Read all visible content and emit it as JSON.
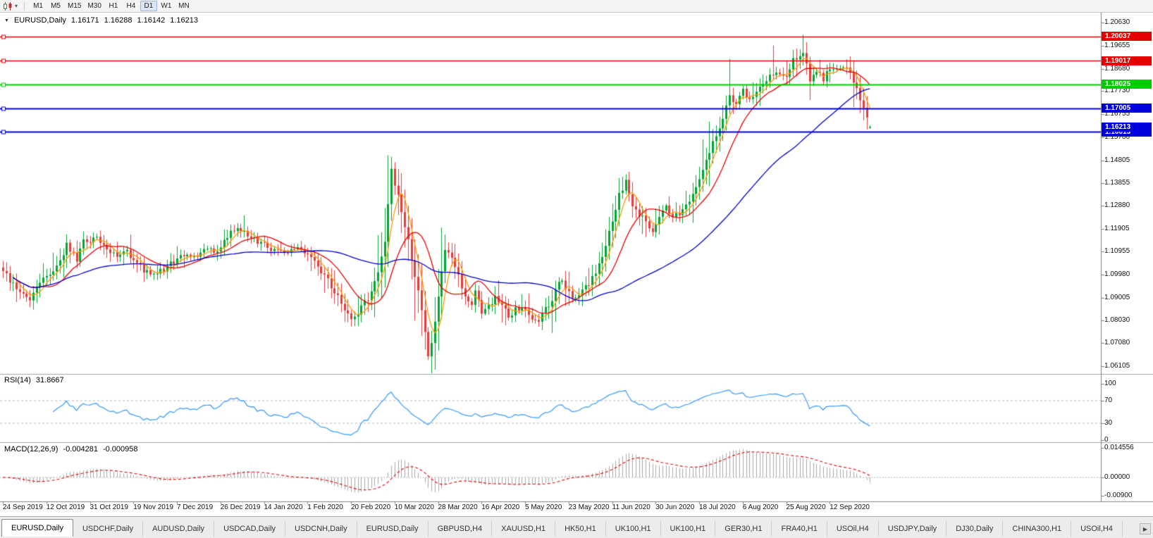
{
  "toolbar": {
    "timeframes": [
      "M1",
      "M5",
      "M15",
      "M30",
      "H1",
      "H4",
      "D1",
      "W1",
      "MN"
    ],
    "active_timeframe": "D1"
  },
  "chart": {
    "title": {
      "symbol_period": "EURUSD,Daily",
      "open": "1.16171",
      "high": "1.16288",
      "low": "1.16142",
      "close": "1.16213"
    },
    "price_axis": {
      "top_price": 1.2063,
      "bottom_price": 1.06105,
      "ticks": [
        "1.20630",
        "1.19655",
        "1.18680",
        "1.17730",
        "1.16755",
        "1.15780",
        "1.14805",
        "1.13855",
        "1.12880",
        "1.11905",
        "1.10955",
        "1.09980",
        "1.09005",
        "1.08030",
        "1.07080",
        "1.06105"
      ]
    },
    "levels": [
      {
        "label": "1.20037",
        "value": 1.20037,
        "color": "#e60000",
        "thickness": 1.6
      },
      {
        "label": "1.19017",
        "value": 1.19017,
        "color": "#e60000",
        "thickness": 1.6
      },
      {
        "label": "1.18025",
        "value": 1.18025,
        "color": "#00cc00",
        "thickness": 2.2
      },
      {
        "label": "1.17005",
        "value": 1.17005,
        "color": "#0000dd",
        "thickness": 2.2
      },
      {
        "label": "1.16013",
        "value": 1.16013,
        "color": "#0000dd",
        "thickness": 2.2
      }
    ],
    "current_price": {
      "label": "1.16213",
      "value": 1.16213,
      "color": "#0000dd"
    },
    "date_axis": {
      "labels": [
        "24 Sep 2019",
        "12 Oct 2019",
        "31 Oct 2019",
        "19 Nov 2019",
        "7 Dec 2019",
        "26 Dec 2019",
        "14 Jan 2020",
        "1 Feb 2020",
        "20 Feb 2020",
        "10 Mar 2020",
        "28 Mar 2020",
        "16 Apr 2020",
        "5 May 2020",
        "23 May 2020",
        "11 Jun 2020",
        "30 Jun 2020",
        "18 Jul 2020",
        "6 Aug 2020",
        "25 Aug 2020",
        "12 Sep 2020"
      ],
      "candles_per_label": 13
    }
  },
  "rsi_panel": {
    "name": "RSI(14)",
    "value": "31.8667",
    "line_color": "#3399ff",
    "scale_labels": [
      {
        "label": "100",
        "value": 100
      },
      {
        "label": "70",
        "value": 70
      },
      {
        "label": "30",
        "value": 30
      },
      {
        "label": "0",
        "value": 0
      }
    ],
    "dashed_levels": [
      70,
      30
    ]
  },
  "macd_panel": {
    "name": "MACD(12,26,9)",
    "macd_value": "-0.004281",
    "signal_value": "-0.000958",
    "histogram_color": "#a8a8a8",
    "signal_color": "#e60000",
    "scale_labels": [
      {
        "label": "0.014556",
        "value": 0.014556
      },
      {
        "label": "0.00000",
        "value": 0
      },
      {
        "label": "-0.00900",
        "value": -0.009
      }
    ]
  },
  "tabs": {
    "active_index": 0,
    "scroll_right_icon": "right-arrow",
    "items": [
      "EURUSD,Daily",
      "USDCHF,Daily",
      "AUDUSD,Daily",
      "USDCAD,Daily",
      "USDCNH,Daily",
      "EURUSD,Daily",
      "GBPUSD,H4",
      "XAUUSD,H1",
      "HK50,H1",
      "UK100,H1",
      "UK100,H1",
      "GER30,H1",
      "FRA40,H1",
      "USOil,H4",
      "USDJPY,Daily",
      "DJ30,Daily",
      "CHINA300,H1",
      "USOil,H4"
    ],
    "partially_hidden_last": true
  },
  "chart_data": {
    "type": "candlestick",
    "symbol": "EURUSD",
    "timeframe": "Daily",
    "num_candles": 260,
    "up_color": "#00a532",
    "down_color": "#e63b3b",
    "last_candle": {
      "open": 1.16171,
      "high": 1.16288,
      "low": 1.16142,
      "close": 1.16213
    },
    "close_waypoints": [
      [
        0,
        1.101
      ],
      [
        3,
        1.0955
      ],
      [
        6,
        1.0905
      ],
      [
        8,
        1.0895
      ],
      [
        11,
        1.097
      ],
      [
        13,
        1.099
      ],
      [
        16,
        1.1035
      ],
      [
        19,
        1.112
      ],
      [
        22,
        1.1065
      ],
      [
        24,
        1.114
      ],
      [
        26,
        1.1125
      ],
      [
        28,
        1.116
      ],
      [
        31,
        1.1105
      ],
      [
        34,
        1.107
      ],
      [
        37,
        1.109
      ],
      [
        39,
        1.1065
      ],
      [
        42,
        1.101
      ],
      [
        45,
        1.0995
      ],
      [
        48,
        1.102
      ],
      [
        52,
        1.106
      ],
      [
        55,
        1.1085
      ],
      [
        58,
        1.1075
      ],
      [
        61,
        1.111
      ],
      [
        63,
        1.109
      ],
      [
        65,
        1.112
      ],
      [
        68,
        1.1185
      ],
      [
        70,
        1.12
      ],
      [
        73,
        1.116
      ],
      [
        76,
        1.114
      ],
      [
        78,
        1.113
      ],
      [
        81,
        1.11
      ],
      [
        84,
        1.1095
      ],
      [
        88,
        1.111
      ],
      [
        91,
        1.109
      ],
      [
        94,
        1.1035
      ],
      [
        97,
        1.0975
      ],
      [
        100,
        1.09
      ],
      [
        102,
        1.0845
      ],
      [
        104,
        1.08
      ],
      [
        106,
        1.0835
      ],
      [
        108,
        1.088
      ],
      [
        110,
        1.092
      ],
      [
        112,
        1.1
      ],
      [
        114,
        1.113
      ],
      [
        116,
        1.144
      ],
      [
        118,
        1.133
      ],
      [
        120,
        1.121
      ],
      [
        122,
        1.106
      ],
      [
        124,
        1.094
      ],
      [
        126,
        1.076
      ],
      [
        127,
        1.065
      ],
      [
        128,
        1.072
      ],
      [
        130,
        1.09
      ],
      [
        132,
        1.11
      ],
      [
        134,
        1.106
      ],
      [
        136,
        1.099
      ],
      [
        138,
        1.09
      ],
      [
        140,
        1.088
      ],
      [
        141,
        1.0925
      ],
      [
        143,
        1.084
      ],
      [
        145,
        1.0865
      ],
      [
        147,
        1.0905
      ],
      [
        149,
        1.088
      ],
      [
        151,
        1.082
      ],
      [
        153,
        1.0855
      ],
      [
        156,
        1.084
      ],
      [
        158,
        1.0795
      ],
      [
        160,
        1.081
      ],
      [
        162,
        1.085
      ],
      [
        164,
        1.0895
      ],
      [
        166,
        1.0975
      ],
      [
        168,
        1.0945
      ],
      [
        170,
        1.0895
      ],
      [
        172,
        1.092
      ],
      [
        174,
        1.0945
      ],
      [
        176,
        1.0985
      ],
      [
        178,
        1.104
      ],
      [
        180,
        1.113
      ],
      [
        182,
        1.121
      ],
      [
        184,
        1.133
      ],
      [
        186,
        1.139
      ],
      [
        188,
        1.1295
      ],
      [
        190,
        1.1255
      ],
      [
        192,
        1.122
      ],
      [
        194,
        1.1185
      ],
      [
        196,
        1.124
      ],
      [
        198,
        1.1285
      ],
      [
        200,
        1.1245
      ],
      [
        202,
        1.1255
      ],
      [
        204,
        1.1295
      ],
      [
        206,
        1.133
      ],
      [
        208,
        1.14
      ],
      [
        211,
        1.152
      ],
      [
        214,
        1.162
      ],
      [
        217,
        1.175
      ],
      [
        219,
        1.1715
      ],
      [
        221,
        1.178
      ],
      [
        223,
        1.173
      ],
      [
        226,
        1.179
      ],
      [
        229,
        1.1835
      ],
      [
        232,
        1.1855
      ],
      [
        234,
        1.184
      ],
      [
        236,
        1.1905
      ],
      [
        239,
        1.194
      ],
      [
        241,
        1.182
      ],
      [
        243,
        1.1855
      ],
      [
        245,
        1.1825
      ],
      [
        247,
        1.187
      ],
      [
        249,
        1.1855
      ],
      [
        251,
        1.1875
      ],
      [
        253,
        1.1845
      ],
      [
        255,
        1.1785
      ],
      [
        257,
        1.17
      ],
      [
        259,
        1.16213
      ]
    ],
    "wick_overrides": [
      {
        "i": 104,
        "low": 1.0778
      },
      {
        "i": 116,
        "high": 1.1495
      },
      {
        "i": 127,
        "low": 1.0636
      },
      {
        "i": 186,
        "high": 1.1422
      },
      {
        "i": 217,
        "high": 1.1909
      },
      {
        "i": 230,
        "high": 1.1966
      },
      {
        "i": 239,
        "high": 1.2011
      }
    ],
    "moving_averages": [
      {
        "type": "sma",
        "window": 5,
        "color": "#ff9900"
      },
      {
        "type": "sma",
        "window": 13,
        "color": "#e60000"
      },
      {
        "type": "sma",
        "window": 50,
        "color": "#0000cc"
      }
    ],
    "indicators": [
      {
        "type": "rsi",
        "period": 14,
        "last_value": 31.8667,
        "levels": [
          30,
          70
        ]
      },
      {
        "type": "macd",
        "fast": 12,
        "slow": 26,
        "signal": 9,
        "last_macd": -0.004281,
        "last_signal": -0.000958
      }
    ]
  }
}
